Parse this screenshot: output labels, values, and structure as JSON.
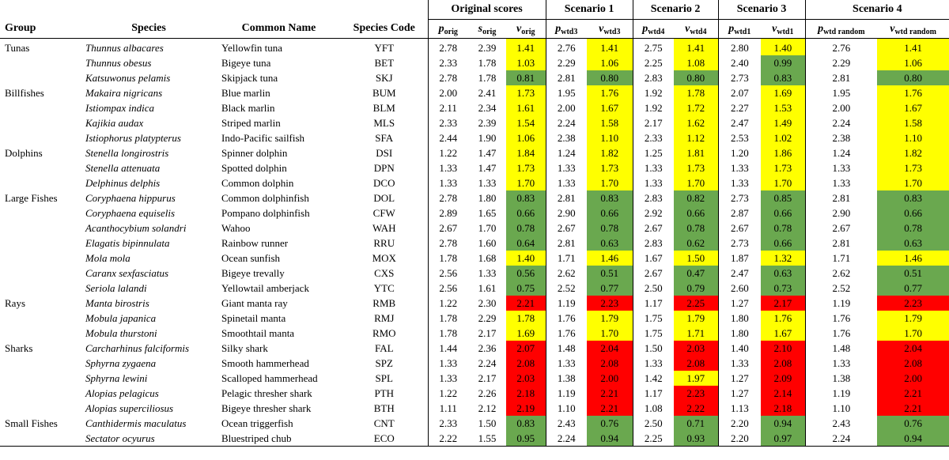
{
  "headers": {
    "group": "Group",
    "species": "Species",
    "common": "Common Name",
    "code": "Species Code",
    "scenarios": [
      "Original scores",
      "Scenario 1",
      "Scenario 2",
      "Scenario 3",
      "Scenario 4"
    ],
    "sub": {
      "orig_p": "orig",
      "orig_s": "orig",
      "orig_v": "orig",
      "s1_p": "wtd3",
      "s1_v": "wtd3",
      "s2_p": "wtd4",
      "s2_v": "wtd4",
      "s3_p": "wtd1",
      "s3_v": "wtd1",
      "s4_p": "wtd random",
      "s4_v": "wtd random"
    },
    "letters": {
      "p": "p",
      "s": "s",
      "v": "v"
    }
  },
  "colors": {
    "yellow": "#ffff00",
    "green": "#6aa84f",
    "red": "#ff0000"
  },
  "rows": [
    {
      "group": "Tunas",
      "species": "Thunnus albacares",
      "common": "Yellowfin tuna",
      "code": "YFT",
      "p_orig": "2.78",
      "s_orig": "2.39",
      "v_orig": "1.41",
      "p1": "2.76",
      "v1": "1.41",
      "p2": "2.75",
      "v2": "1.41",
      "p3": "2.80",
      "v3": "1.40",
      "p4": "2.76",
      "v4": "1.41",
      "c": [
        "y",
        "y",
        "y",
        "y",
        "y"
      ]
    },
    {
      "group": "",
      "species": "Thunnus obesus",
      "common": "Bigeye tuna",
      "code": "BET",
      "p_orig": "2.33",
      "s_orig": "1.78",
      "v_orig": "1.03",
      "p1": "2.29",
      "v1": "1.06",
      "p2": "2.25",
      "v2": "1.08",
      "p3": "2.40",
      "v3": "0.99",
      "p4": "2.29",
      "v4": "1.06",
      "c": [
        "y",
        "y",
        "y",
        "g",
        "y"
      ]
    },
    {
      "group": "",
      "species": "Katsuwonus pelamis",
      "common": "Skipjack tuna",
      "code": "SKJ",
      "p_orig": "2.78",
      "s_orig": "1.78",
      "v_orig": "0.81",
      "p1": "2.81",
      "v1": "0.80",
      "p2": "2.83",
      "v2": "0.80",
      "p3": "2.73",
      "v3": "0.83",
      "p4": "2.81",
      "v4": "0.80",
      "c": [
        "g",
        "g",
        "g",
        "g",
        "g"
      ]
    },
    {
      "group": "Billfishes",
      "species": "Makaira nigricans",
      "common": "Blue marlin",
      "code": "BUM",
      "p_orig": "2.00",
      "s_orig": "2.41",
      "v_orig": "1.73",
      "p1": "1.95",
      "v1": "1.76",
      "p2": "1.92",
      "v2": "1.78",
      "p3": "2.07",
      "v3": "1.69",
      "p4": "1.95",
      "v4": "1.76",
      "c": [
        "y",
        "y",
        "y",
        "y",
        "y"
      ]
    },
    {
      "group": "",
      "species": "Istiompax indica",
      "common": "Black marlin",
      "code": "BLM",
      "p_orig": "2.11",
      "s_orig": "2.34",
      "v_orig": "1.61",
      "p1": "2.00",
      "v1": "1.67",
      "p2": "1.92",
      "v2": "1.72",
      "p3": "2.27",
      "v3": "1.53",
      "p4": "2.00",
      "v4": "1.67",
      "c": [
        "y",
        "y",
        "y",
        "y",
        "y"
      ]
    },
    {
      "group": "",
      "species": "Kajikia audax",
      "common": "Striped marlin",
      "code": "MLS",
      "p_orig": "2.33",
      "s_orig": "2.39",
      "v_orig": "1.54",
      "p1": "2.24",
      "v1": "1.58",
      "p2": "2.17",
      "v2": "1.62",
      "p3": "2.47",
      "v3": "1.49",
      "p4": "2.24",
      "v4": "1.58",
      "c": [
        "y",
        "y",
        "y",
        "y",
        "y"
      ]
    },
    {
      "group": "",
      "species": "Istiophorus platypterus",
      "common": "Indo-Pacific sailfish",
      "code": "SFA",
      "p_orig": "2.44",
      "s_orig": "1.90",
      "v_orig": "1.06",
      "p1": "2.38",
      "v1": "1.10",
      "p2": "2.33",
      "v2": "1.12",
      "p3": "2.53",
      "v3": "1.02",
      "p4": "2.38",
      "v4": "1.10",
      "c": [
        "y",
        "y",
        "y",
        "y",
        "y"
      ]
    },
    {
      "group": "Dolphins",
      "species": "Stenella longirostris",
      "common": "Spinner dolphin",
      "code": "DSI",
      "p_orig": "1.22",
      "s_orig": "1.47",
      "v_orig": "1.84",
      "p1": "1.24",
      "v1": "1.82",
      "p2": "1.25",
      "v2": "1.81",
      "p3": "1.20",
      "v3": "1.86",
      "p4": "1.24",
      "v4": "1.82",
      "c": [
        "y",
        "y",
        "y",
        "y",
        "y"
      ]
    },
    {
      "group": "",
      "species": "Stenella attenuata",
      "common": "Spotted dolphin",
      "code": "DPN",
      "p_orig": "1.33",
      "s_orig": "1.47",
      "v_orig": "1.73",
      "p1": "1.33",
      "v1": "1.73",
      "p2": "1.33",
      "v2": "1.73",
      "p3": "1.33",
      "v3": "1.73",
      "p4": "1.33",
      "v4": "1.73",
      "c": [
        "y",
        "y",
        "y",
        "y",
        "y"
      ]
    },
    {
      "group": "",
      "species": "Delphinus delphis",
      "common": "Common dolphin",
      "code": "DCO",
      "p_orig": "1.33",
      "s_orig": "1.33",
      "v_orig": "1.70",
      "p1": "1.33",
      "v1": "1.70",
      "p2": "1.33",
      "v2": "1.70",
      "p3": "1.33",
      "v3": "1.70",
      "p4": "1.33",
      "v4": "1.70",
      "c": [
        "y",
        "y",
        "y",
        "y",
        "y"
      ]
    },
    {
      "group": "Large Fishes",
      "species": "Coryphaena hippurus",
      "common": "Common dolphinfish",
      "code": "DOL",
      "p_orig": "2.78",
      "s_orig": "1.80",
      "v_orig": "0.83",
      "p1": "2.81",
      "v1": "0.83",
      "p2": "2.83",
      "v2": "0.82",
      "p3": "2.73",
      "v3": "0.85",
      "p4": "2.81",
      "v4": "0.83",
      "c": [
        "g",
        "g",
        "g",
        "g",
        "g"
      ]
    },
    {
      "group": "",
      "species": "Coryphaena equiselis",
      "common": "Pompano dolphinfish",
      "code": "CFW",
      "p_orig": "2.89",
      "s_orig": "1.65",
      "v_orig": "0.66",
      "p1": "2.90",
      "v1": "0.66",
      "p2": "2.92",
      "v2": "0.66",
      "p3": "2.87",
      "v3": "0.66",
      "p4": "2.90",
      "v4": "0.66",
      "c": [
        "g",
        "g",
        "g",
        "g",
        "g"
      ]
    },
    {
      "group": "",
      "species": "Acanthocybium solandri",
      "common": "Wahoo",
      "code": "WAH",
      "p_orig": "2.67",
      "s_orig": "1.70",
      "v_orig": "0.78",
      "p1": "2.67",
      "v1": "0.78",
      "p2": "2.67",
      "v2": "0.78",
      "p3": "2.67",
      "v3": "0.78",
      "p4": "2.67",
      "v4": "0.78",
      "c": [
        "g",
        "g",
        "g",
        "g",
        "g"
      ]
    },
    {
      "group": "",
      "species": "Elagatis bipinnulata",
      "common": "Rainbow runner",
      "code": "RRU",
      "p_orig": "2.78",
      "s_orig": "1.60",
      "v_orig": "0.64",
      "p1": "2.81",
      "v1": "0.63",
      "p2": "2.83",
      "v2": "0.62",
      "p3": "2.73",
      "v3": "0.66",
      "p4": "2.81",
      "v4": "0.63",
      "c": [
        "g",
        "g",
        "g",
        "g",
        "g"
      ]
    },
    {
      "group": "",
      "species": "Mola mola",
      "common": "Ocean sunfish",
      "code": "MOX",
      "p_orig": "1.78",
      "s_orig": "1.68",
      "v_orig": "1.40",
      "p1": "1.71",
      "v1": "1.46",
      "p2": "1.67",
      "v2": "1.50",
      "p3": "1.87",
      "v3": "1.32",
      "p4": "1.71",
      "v4": "1.46",
      "c": [
        "y",
        "y",
        "y",
        "y",
        "y"
      ]
    },
    {
      "group": "",
      "species": "Caranx sexfasciatus",
      "common": "Bigeye trevally",
      "code": "CXS",
      "p_orig": "2.56",
      "s_orig": "1.33",
      "v_orig": "0.56",
      "p1": "2.62",
      "v1": "0.51",
      "p2": "2.67",
      "v2": "0.47",
      "p3": "2.47",
      "v3": "0.63",
      "p4": "2.62",
      "v4": "0.51",
      "c": [
        "g",
        "g",
        "g",
        "g",
        "g"
      ]
    },
    {
      "group": "",
      "species": "Seriola lalandi",
      "common": "Yellowtail amberjack",
      "code": "YTC",
      "p_orig": "2.56",
      "s_orig": "1.61",
      "v_orig": "0.75",
      "p1": "2.52",
      "v1": "0.77",
      "p2": "2.50",
      "v2": "0.79",
      "p3": "2.60",
      "v3": "0.73",
      "p4": "2.52",
      "v4": "0.77",
      "c": [
        "g",
        "g",
        "g",
        "g",
        "g"
      ]
    },
    {
      "group": "Rays",
      "species": "Manta birostris",
      "common": "Giant manta ray",
      "code": "RMB",
      "p_orig": "1.22",
      "s_orig": "2.30",
      "v_orig": "2.21",
      "p1": "1.19",
      "v1": "2.23",
      "p2": "1.17",
      "v2": "2.25",
      "p3": "1.27",
      "v3": "2.17",
      "p4": "1.19",
      "v4": "2.23",
      "c": [
        "r",
        "r",
        "r",
        "r",
        "r"
      ]
    },
    {
      "group": "",
      "species": "Mobula japanica",
      "common": "Spinetail manta",
      "code": "RMJ",
      "p_orig": "1.78",
      "s_orig": "2.29",
      "v_orig": "1.78",
      "p1": "1.76",
      "v1": "1.79",
      "p2": "1.75",
      "v2": "1.79",
      "p3": "1.80",
      "v3": "1.76",
      "p4": "1.76",
      "v4": "1.79",
      "c": [
        "y",
        "y",
        "y",
        "y",
        "y"
      ]
    },
    {
      "group": "",
      "species": "Mobula thurstoni",
      "common": "Smoothtail manta",
      "code": "RMO",
      "p_orig": "1.78",
      "s_orig": "2.17",
      "v_orig": "1.69",
      "p1": "1.76",
      "v1": "1.70",
      "p2": "1.75",
      "v2": "1.71",
      "p3": "1.80",
      "v3": "1.67",
      "p4": "1.76",
      "v4": "1.70",
      "c": [
        "y",
        "y",
        "y",
        "y",
        "y"
      ]
    },
    {
      "group": "Sharks",
      "species": "Carcharhinus falciformis",
      "common": "Silky shark",
      "code": "FAL",
      "p_orig": "1.44",
      "s_orig": "2.36",
      "v_orig": "2.07",
      "p1": "1.48",
      "v1": "2.04",
      "p2": "1.50",
      "v2": "2.03",
      "p3": "1.40",
      "v3": "2.10",
      "p4": "1.48",
      "v4": "2.04",
      "c": [
        "r",
        "r",
        "r",
        "r",
        "r"
      ]
    },
    {
      "group": "",
      "species": "Sphyrna zygaena",
      "common": "Smooth hammerhead",
      "code": "SPZ",
      "p_orig": "1.33",
      "s_orig": "2.24",
      "v_orig": "2.08",
      "p1": "1.33",
      "v1": "2.08",
      "p2": "1.33",
      "v2": "2.08",
      "p3": "1.33",
      "v3": "2.08",
      "p4": "1.33",
      "v4": "2.08",
      "c": [
        "r",
        "r",
        "r",
        "r",
        "r"
      ]
    },
    {
      "group": "",
      "species": "Sphyrna lewini",
      "common": "Scalloped hammerhead",
      "code": "SPL",
      "p_orig": "1.33",
      "s_orig": "2.17",
      "v_orig": "2.03",
      "p1": "1.38",
      "v1": "2.00",
      "p2": "1.42",
      "v2": "1.97",
      "p3": "1.27",
      "v3": "2.09",
      "p4": "1.38",
      "v4": "2.00",
      "c": [
        "r",
        "r",
        "y",
        "r",
        "r"
      ]
    },
    {
      "group": "",
      "species": "Alopias pelagicus",
      "common": "Pelagic thresher shark",
      "code": "PTH",
      "p_orig": "1.22",
      "s_orig": "2.26",
      "v_orig": "2.18",
      "p1": "1.19",
      "v1": "2.21",
      "p2": "1.17",
      "v2": "2.23",
      "p3": "1.27",
      "v3": "2.14",
      "p4": "1.19",
      "v4": "2.21",
      "c": [
        "r",
        "r",
        "r",
        "r",
        "r"
      ]
    },
    {
      "group": "",
      "species": "Alopias superciliosus",
      "common": "Bigeye thresher shark",
      "code": "BTH",
      "p_orig": "1.11",
      "s_orig": "2.12",
      "v_orig": "2.19",
      "p1": "1.10",
      "v1": "2.21",
      "p2": "1.08",
      "v2": "2.22",
      "p3": "1.13",
      "v3": "2.18",
      "p4": "1.10",
      "v4": "2.21",
      "c": [
        "r",
        "r",
        "r",
        "r",
        "r"
      ]
    },
    {
      "group": "Small Fishes",
      "species": "Canthidermis maculatus",
      "common": "Ocean triggerfish",
      "code": "CNT",
      "p_orig": "2.33",
      "s_orig": "1.50",
      "v_orig": "0.83",
      "p1": "2.43",
      "v1": "0.76",
      "p2": "2.50",
      "v2": "0.71",
      "p3": "2.20",
      "v3": "0.94",
      "p4": "2.43",
      "v4": "0.76",
      "c": [
        "g",
        "g",
        "g",
        "g",
        "g"
      ]
    },
    {
      "group": "",
      "species": "Sectator ocyurus",
      "common": "Bluestriped chub",
      "code": "ECO",
      "p_orig": "2.22",
      "s_orig": "1.55",
      "v_orig": "0.95",
      "p1": "2.24",
      "v1": "0.94",
      "p2": "2.25",
      "v2": "0.93",
      "p3": "2.20",
      "v3": "0.97",
      "p4": "2.24",
      "v4": "0.94",
      "c": [
        "g",
        "g",
        "g",
        "g",
        "g"
      ]
    }
  ]
}
